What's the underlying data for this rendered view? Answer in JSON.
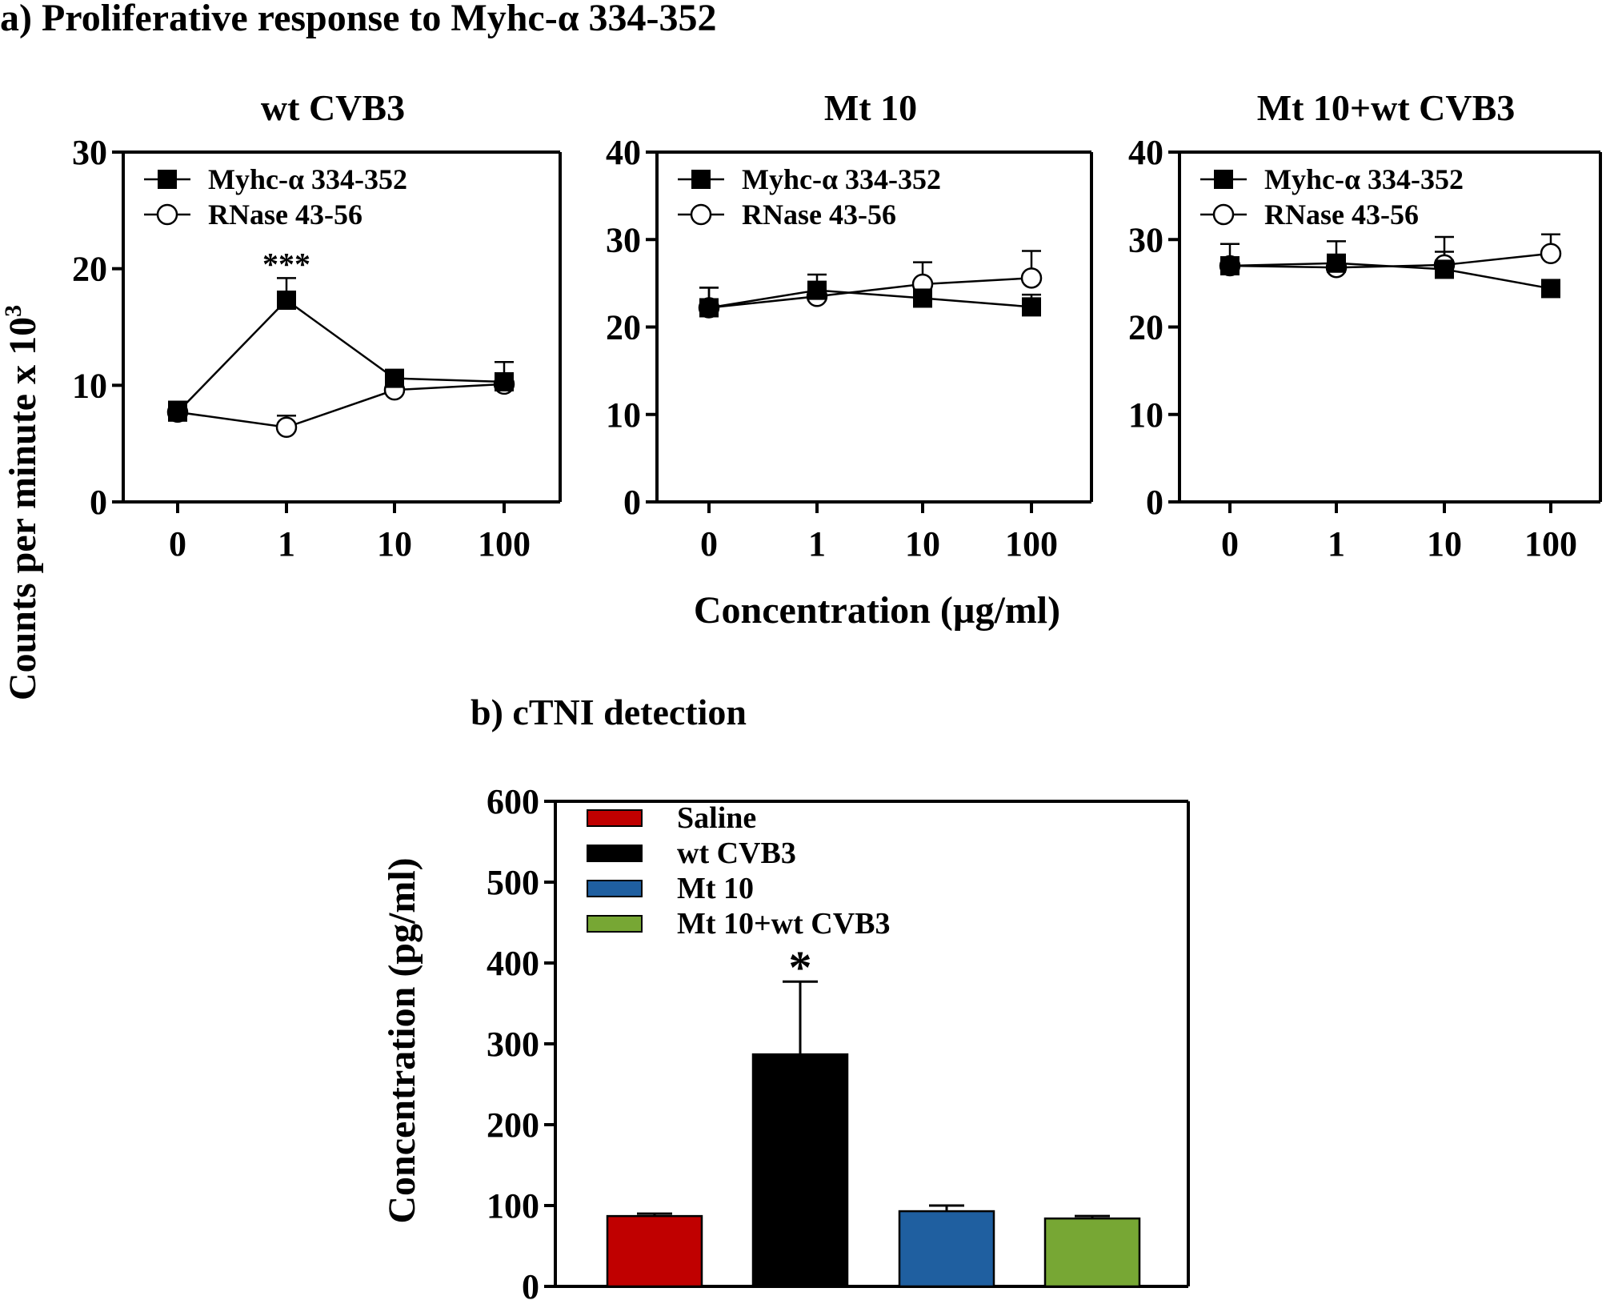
{
  "figure": {
    "panel_a_title": "a) Proliferative response to Myhc-α 334-352",
    "panel_b_title": "b) cTNI detection"
  },
  "chart_data": [
    {
      "type": "line",
      "title": "wt CVB3",
      "ylabel_main": "Counts per minute x 10",
      "ylabel_sup": "3",
      "xlabel": "Concentration (µg/ml)",
      "categories": [
        "0",
        "1",
        "10",
        "100"
      ],
      "ylim": [
        0,
        30
      ],
      "yticks": [
        0,
        10,
        20,
        30
      ],
      "legend_position": "top-left",
      "series": [
        {
          "name": "Myhc-α 334-352",
          "marker": "square-filled",
          "values": [
            7.7,
            17.3,
            10.6,
            10.3
          ],
          "errors": [
            0.9,
            1.9,
            0.4,
            1.7
          ]
        },
        {
          "name": "RNase 43-56",
          "marker": "circle-open",
          "values": [
            7.7,
            6.4,
            9.6,
            10.1
          ],
          "errors": [
            0.6,
            1.0,
            0.4,
            0.4
          ]
        }
      ],
      "annotations": [
        {
          "text": "***",
          "category": "1"
        }
      ]
    },
    {
      "type": "line",
      "title": "Mt 10",
      "categories": [
        "0",
        "1",
        "10",
        "100"
      ],
      "ylim": [
        0,
        40
      ],
      "yticks": [
        0,
        10,
        20,
        30,
        40
      ],
      "legend_position": "top-left",
      "series": [
        {
          "name": "Myhc-α 334-352",
          "marker": "square-filled",
          "values": [
            22.2,
            24.2,
            23.3,
            22.3
          ],
          "errors": [
            2.3,
            1.8,
            0.5,
            1.4
          ]
        },
        {
          "name": "RNase 43-56",
          "marker": "circle-open",
          "values": [
            22.2,
            23.5,
            24.9,
            25.6
          ],
          "errors": [
            2.3,
            1.4,
            2.5,
            3.1
          ]
        }
      ]
    },
    {
      "type": "line",
      "title": "Mt 10+wt CVB3",
      "categories": [
        "0",
        "1",
        "10",
        "100"
      ],
      "ylim": [
        0,
        40
      ],
      "yticks": [
        0,
        10,
        20,
        30,
        40
      ],
      "legend_position": "top-left",
      "series": [
        {
          "name": "Myhc-α 334-352",
          "marker": "square-filled",
          "values": [
            27.0,
            27.3,
            26.6,
            24.4
          ],
          "errors": [
            2.5,
            2.5,
            2.0,
            0.3
          ]
        },
        {
          "name": "RNase 43-56",
          "marker": "circle-open",
          "values": [
            27.0,
            26.8,
            27.1,
            28.4
          ],
          "errors": [
            0.5,
            0.4,
            3.2,
            2.2
          ]
        }
      ]
    },
    {
      "type": "bar",
      "ylabel": "Concentration (pg/ml)",
      "ylim": [
        0,
        600
      ],
      "yticks": [
        0,
        100,
        200,
        300,
        400,
        500,
        600
      ],
      "legend_position": "top-left",
      "categories": [
        "Saline",
        "wt CVB3",
        "Mt 10",
        "Mt 10+wt CVB3"
      ],
      "values": [
        87,
        287,
        93,
        84
      ],
      "errors": [
        3,
        90,
        7,
        3
      ],
      "colors": [
        "#c00000",
        "#000000",
        "#1f5fa0",
        "#77a734"
      ],
      "annotations": [
        {
          "text": "*",
          "category": "wt CVB3"
        }
      ]
    }
  ]
}
